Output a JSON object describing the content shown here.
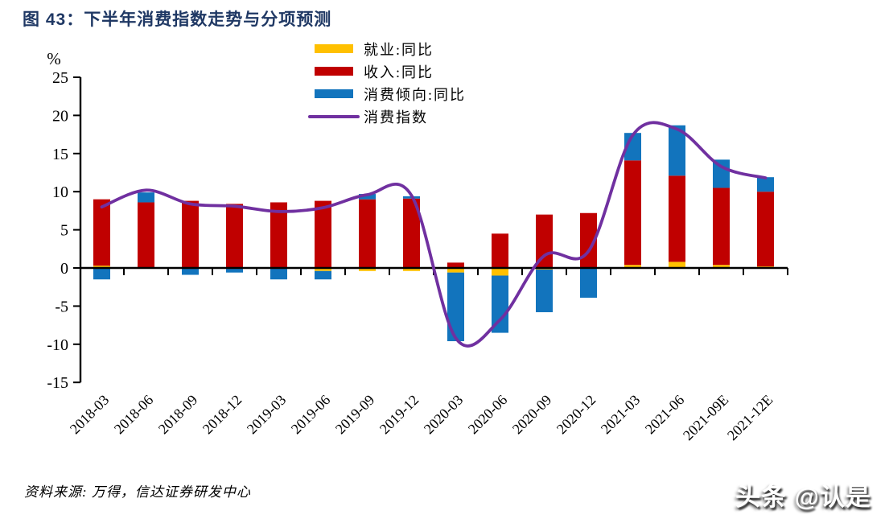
{
  "figure": {
    "title": "图 43：下半年消费指数走势与分项预测",
    "source_note": "资料来源: 万得，信达证券研发中心",
    "watermark": "头条 @认是"
  },
  "chart_data": {
    "type": "bar",
    "subtype": "stacked-bar-with-smoothed-line",
    "title": "下半年消费指数走势与分项预测",
    "unit_label": "%",
    "ylim": [
      -15,
      25
    ],
    "yticks": [
      25,
      20,
      15,
      10,
      5,
      0,
      -5,
      -10,
      -15
    ],
    "grid": false,
    "legend_position": "top-center",
    "categories": [
      "2018-03",
      "2018-06",
      "2018-09",
      "2018-12",
      "2019-03",
      "2019-06",
      "2019-09",
      "2019-12",
      "2020-03",
      "2020-06",
      "2020-09",
      "2020-12",
      "2021-03",
      "2021-06",
      "2021-09E",
      "2021-12E"
    ],
    "series": [
      {
        "name": "就业:同比",
        "type": "bar",
        "color": "#FFC000",
        "values": [
          0.3,
          0.0,
          0.0,
          0.0,
          0.0,
          -0.4,
          -0.4,
          -0.4,
          -0.6,
          -1.0,
          -0.2,
          -0.1,
          0.4,
          0.8,
          0.4,
          0.2
        ]
      },
      {
        "name": "收入:同比",
        "type": "bar",
        "color": "#C00000",
        "values": [
          8.7,
          8.6,
          8.8,
          8.4,
          8.6,
          8.8,
          9.0,
          9.1,
          0.7,
          4.5,
          7.0,
          7.2,
          13.7,
          11.3,
          10.1,
          9.8
        ]
      },
      {
        "name": "消费倾向:同比",
        "type": "bar",
        "color": "#1274BD",
        "values": [
          -1.5,
          1.3,
          -0.9,
          -0.6,
          -1.5,
          -1.1,
          0.7,
          0.3,
          -9.0,
          -7.5,
          -5.6,
          -3.8,
          3.6,
          6.6,
          3.7,
          1.9
        ]
      },
      {
        "name": "消费指数",
        "type": "line",
        "color": "#7030A0",
        "values": [
          8.0,
          10.2,
          8.4,
          8.1,
          7.4,
          7.9,
          9.6,
          9.5,
          -9.2,
          -6.8,
          1.6,
          2.2,
          17.4,
          18.2,
          13.3,
          11.8
        ]
      }
    ],
    "colors": {
      "axis": "#000000",
      "title": "#1F3864",
      "background": "#FFFFFF"
    }
  }
}
